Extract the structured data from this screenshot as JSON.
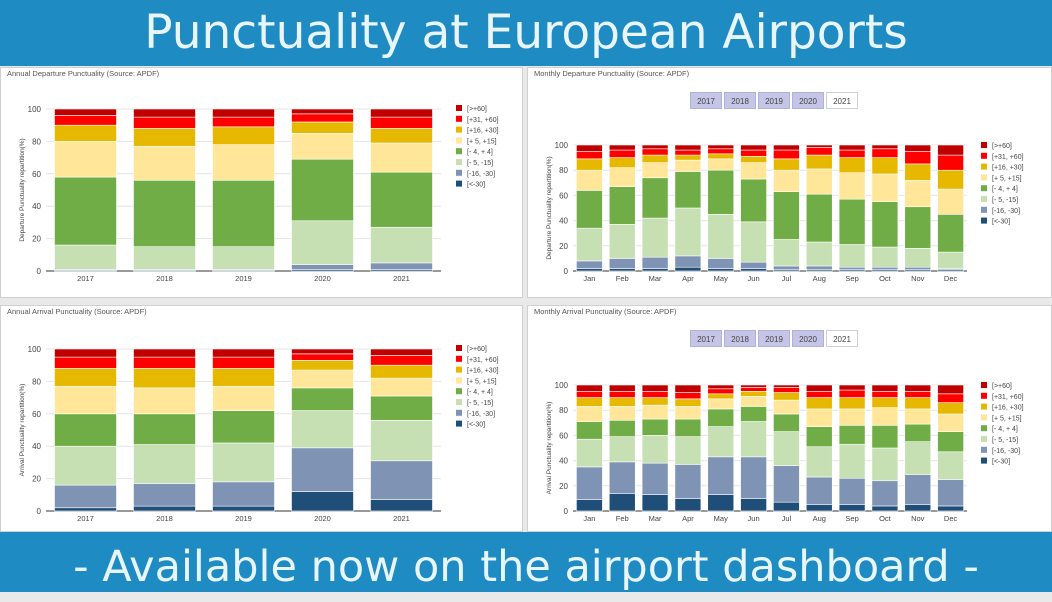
{
  "header": {
    "title": "Punctuality at European Airports"
  },
  "footer": {
    "text": "- Available now on the airport dashboard -"
  },
  "colors": {
    "banner": "#1e8bc3",
    "text": "#e8f6fb"
  },
  "year_tabs": {
    "items": [
      "2017",
      "2018",
      "2019",
      "2020",
      "2021"
    ],
    "active": "2021"
  },
  "chart_data": [
    {
      "title": "Annual Departure Punctuality (Source: APDF)",
      "type": "bar",
      "stacked": true,
      "ylabel": "Departure Punctuality repartition(%)",
      "ylim": [
        0,
        100
      ],
      "yticks": [
        0,
        20,
        40,
        60,
        80,
        100
      ],
      "legend": "right",
      "categories": [
        "2017",
        "2018",
        "2019",
        "2020",
        "2021"
      ],
      "series": [
        {
          "name": "[<-30]",
          "color": "#1f4e79",
          "values": [
            0.5,
            0.5,
            0.5,
            1,
            1
          ]
        },
        {
          "name": "[-16, -30]",
          "color": "#7f93b5",
          "values": [
            0.5,
            0.5,
            0.5,
            3,
            4
          ]
        },
        {
          "name": "[- 5, -15]",
          "color": "#c6e0b4",
          "values": [
            15,
            14,
            14,
            27,
            22
          ]
        },
        {
          "name": "[- 4, + 4]",
          "color": "#70ad47",
          "values": [
            42,
            41,
            41,
            38,
            34
          ]
        },
        {
          "name": "[+ 5, +15]",
          "color": "#ffe699",
          "values": [
            22,
            21,
            22,
            16,
            18
          ]
        },
        {
          "name": "[+16, +30]",
          "color": "#e6b800",
          "values": [
            10,
            11,
            11,
            7,
            9
          ]
        },
        {
          "name": "[+31, +60]",
          "color": "#ff0000",
          "values": [
            6,
            7,
            6,
            5,
            7
          ]
        },
        {
          "name": "[>+60]",
          "color": "#c00000",
          "values": [
            4,
            5,
            5,
            3,
            5
          ]
        }
      ]
    },
    {
      "title": "Monthly Departure Punctuality (Source: APDF)",
      "type": "bar",
      "stacked": true,
      "ylabel": "Departure Punctuality repartition(%)",
      "ylim": [
        0,
        100
      ],
      "yticks": [
        0,
        20,
        40,
        60,
        80,
        100
      ],
      "legend": "right",
      "categories": [
        "Jan",
        "Feb",
        "Mar",
        "Apr",
        "May",
        "Jun",
        "Jul",
        "Aug",
        "Sep",
        "Oct",
        "Nov",
        "Dec"
      ],
      "series": [
        {
          "name": "[<-30]",
          "color": "#1f4e79",
          "values": [
            2,
            2,
            2,
            3,
            2,
            2,
            1,
            1,
            1,
            1,
            1,
            1
          ]
        },
        {
          "name": "[-16, -30]",
          "color": "#7f93b5",
          "values": [
            6,
            8,
            9,
            9,
            8,
            5,
            3,
            3,
            2,
            2,
            2,
            1
          ]
        },
        {
          "name": "[- 5, -15]",
          "color": "#c6e0b4",
          "values": [
            26,
            27,
            31,
            38,
            35,
            32,
            21,
            19,
            18,
            16,
            15,
            13
          ]
        },
        {
          "name": "[- 4, + 4]",
          "color": "#70ad47",
          "values": [
            30,
            30,
            32,
            29,
            35,
            34,
            38,
            38,
            36,
            36,
            33,
            30
          ]
        },
        {
          "name": "[+ 5, +15]",
          "color": "#ffe699",
          "values": [
            16,
            15,
            12,
            9,
            9,
            13,
            17,
            20,
            21,
            22,
            21,
            20
          ]
        },
        {
          "name": "[+16, +30]",
          "color": "#e6b800",
          "values": [
            9,
            8,
            6,
            4,
            4,
            5,
            9,
            11,
            12,
            13,
            13,
            15
          ]
        },
        {
          "name": "[+31, +60]",
          "color": "#ff0000",
          "values": [
            6,
            6,
            5,
            4,
            4,
            5,
            7,
            6,
            6,
            7,
            10,
            12
          ]
        },
        {
          "name": "[>+60]",
          "color": "#c00000",
          "values": [
            5,
            4,
            3,
            4,
            3,
            4,
            4,
            2,
            4,
            3,
            5,
            8
          ]
        }
      ]
    },
    {
      "title": "Annual Arrival Punctuality (Source: APDF)",
      "type": "bar",
      "stacked": true,
      "ylabel": "Arrival Punctuality repartition(%)",
      "ylim": [
        0,
        100
      ],
      "yticks": [
        0,
        20,
        40,
        60,
        80,
        100
      ],
      "legend": "right",
      "categories": [
        "2017",
        "2018",
        "2019",
        "2020",
        "2021"
      ],
      "series": [
        {
          "name": "[<-30]",
          "color": "#1f4e79",
          "values": [
            2,
            3,
            3,
            12,
            7
          ]
        },
        {
          "name": "[-16, -30]",
          "color": "#7f93b5",
          "values": [
            14,
            14,
            15,
            27,
            24
          ]
        },
        {
          "name": "[- 5, -15]",
          "color": "#c6e0b4",
          "values": [
            24,
            24,
            24,
            23,
            25
          ]
        },
        {
          "name": "[- 4, + 4]",
          "color": "#70ad47",
          "values": [
            20,
            19,
            20,
            14,
            15
          ]
        },
        {
          "name": "[+ 5, +15]",
          "color": "#ffe699",
          "values": [
            17,
            16,
            15,
            11,
            11
          ]
        },
        {
          "name": "[+16, +30]",
          "color": "#e6b800",
          "values": [
            11,
            12,
            11,
            6,
            8
          ]
        },
        {
          "name": "[+31, +60]",
          "color": "#ff0000",
          "values": [
            7,
            7,
            7,
            4,
            6
          ]
        },
        {
          "name": "[>+60]",
          "color": "#c00000",
          "values": [
            5,
            5,
            5,
            3,
            4
          ]
        }
      ]
    },
    {
      "title": "Monthly Arrival Punctuality (Source: APDF)",
      "type": "bar",
      "stacked": true,
      "ylabel": "Arrival Punctuality repartition(%)",
      "ylim": [
        0,
        100
      ],
      "yticks": [
        0,
        20,
        40,
        60,
        80,
        100
      ],
      "legend": "right",
      "categories": [
        "Jan",
        "Feb",
        "Mar",
        "Apr",
        "May",
        "Jun",
        "Jul",
        "Aug",
        "Sep",
        "Oct",
        "Nov",
        "Dec"
      ],
      "series": [
        {
          "name": "[<-30]",
          "color": "#1f4e79",
          "values": [
            9,
            14,
            13,
            10,
            13,
            10,
            7,
            5,
            5,
            4,
            5,
            4
          ]
        },
        {
          "name": "[-16, -30]",
          "color": "#7f93b5",
          "values": [
            26,
            25,
            25,
            27,
            30,
            33,
            29,
            22,
            21,
            20,
            24,
            21
          ]
        },
        {
          "name": "[- 5, -15]",
          "color": "#c6e0b4",
          "values": [
            22,
            20,
            22,
            22,
            24,
            28,
            27,
            24,
            27,
            26,
            26,
            22
          ]
        },
        {
          "name": "[- 4, + 4]",
          "color": "#70ad47",
          "values": [
            14,
            13,
            13,
            14,
            14,
            12,
            14,
            16,
            15,
            18,
            14,
            16
          ]
        },
        {
          "name": "[+ 5, +15]",
          "color": "#ffe699",
          "values": [
            12,
            11,
            11,
            10,
            8,
            8,
            11,
            14,
            13,
            14,
            12,
            14
          ]
        },
        {
          "name": "[+16, +30]",
          "color": "#e6b800",
          "values": [
            7,
            7,
            6,
            6,
            4,
            4,
            6,
            9,
            9,
            8,
            9,
            9
          ]
        },
        {
          "name": "[+31, +60]",
          "color": "#ff0000",
          "values": [
            5,
            5,
            5,
            5,
            4,
            3,
            4,
            5,
            6,
            5,
            5,
            7
          ]
        },
        {
          "name": "[>+60]",
          "color": "#c00000",
          "values": [
            5,
            5,
            5,
            6,
            3,
            2,
            2,
            5,
            4,
            5,
            5,
            7
          ]
        }
      ]
    }
  ]
}
